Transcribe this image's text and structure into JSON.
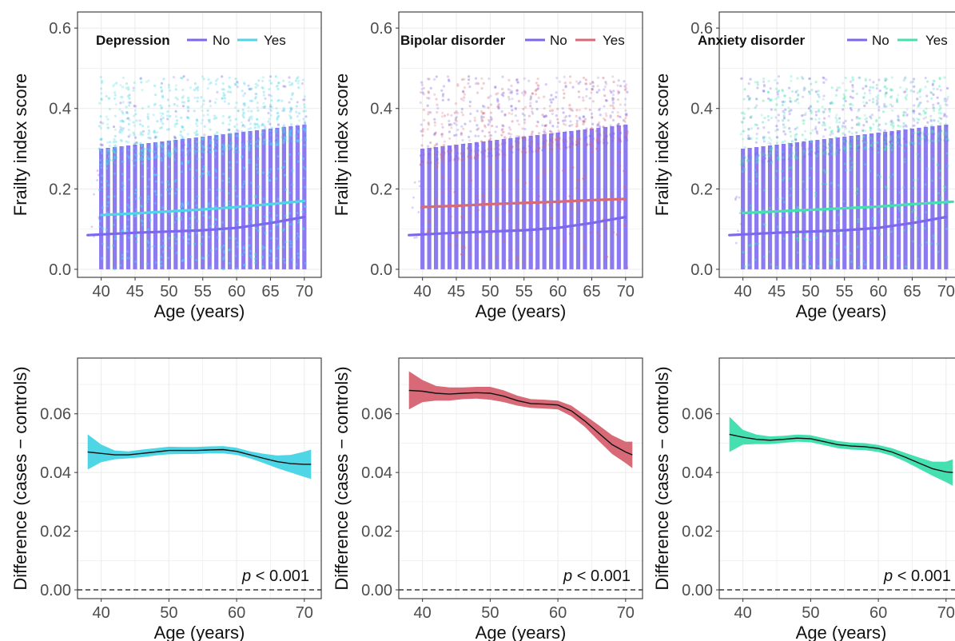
{
  "colors": {
    "no": "#7b68ee",
    "depression": "#4fd6e6",
    "bipolar": "#d86a78",
    "anxiety": "#45e0b0",
    "panel_border": "#333333",
    "grid": "#ebebeb",
    "text": "#333333"
  },
  "chart_data": [
    {
      "type": "scatter",
      "panel": "top-left",
      "legend_title": "Depression",
      "legend_placement": "top",
      "ylabel": "Frailty index score",
      "xlabel": "Age (years)",
      "xlim": [
        36.5,
        72.5
      ],
      "ylim": [
        -0.02,
        0.64
      ],
      "xticks": [
        "40",
        "45",
        "50",
        "55",
        "60",
        "65",
        "70"
      ],
      "yticks": [
        "0.0",
        "0.2",
        "0.4",
        "0.6"
      ],
      "grid": true,
      "points_color_group": "Yes",
      "points_case_fraction": 0.4,
      "series": [
        {
          "name": "No",
          "x": [
            38,
            45,
            50,
            55,
            60,
            65,
            70
          ],
          "y": [
            0.085,
            0.091,
            0.094,
            0.097,
            0.103,
            0.115,
            0.13
          ]
        },
        {
          "name": "Yes",
          "x": [
            40,
            45,
            50,
            55,
            60,
            65,
            70
          ],
          "y": [
            0.135,
            0.139,
            0.144,
            0.149,
            0.155,
            0.162,
            0.17
          ]
        }
      ]
    },
    {
      "type": "scatter",
      "panel": "top-middle",
      "legend_title": "Bipolar disorder",
      "legend_placement": "top",
      "ylabel": "Frailty index score",
      "xlabel": "Age (years)",
      "xlim": [
        36.5,
        72.5
      ],
      "ylim": [
        -0.02,
        0.64
      ],
      "xticks": [
        "40",
        "45",
        "50",
        "55",
        "60",
        "65",
        "70"
      ],
      "yticks": [
        "0.0",
        "0.2",
        "0.4",
        "0.6"
      ],
      "grid": true,
      "points_color_group": "Yes",
      "points_case_fraction": 0.07,
      "series": [
        {
          "name": "No",
          "x": [
            38,
            45,
            50,
            55,
            60,
            65,
            70
          ],
          "y": [
            0.085,
            0.091,
            0.094,
            0.097,
            0.103,
            0.115,
            0.13
          ]
        },
        {
          "name": "Yes",
          "x": [
            40,
            45,
            50,
            55,
            60,
            65,
            70
          ],
          "y": [
            0.155,
            0.158,
            0.162,
            0.165,
            0.168,
            0.172,
            0.175
          ]
        }
      ]
    },
    {
      "type": "scatter",
      "panel": "top-right",
      "legend_title": "Anxiety disorder",
      "legend_placement": "top",
      "ylabel": "Frailty index score",
      "xlabel": "Age (years)",
      "xlim": [
        36.5,
        72.5
      ],
      "ylim": [
        -0.02,
        0.64
      ],
      "xticks": [
        "40",
        "45",
        "50",
        "55",
        "60",
        "65",
        "70"
      ],
      "yticks": [
        "0.0",
        "0.2",
        "0.4",
        "0.6"
      ],
      "grid": true,
      "points_color_group": "Yes",
      "points_case_fraction": 0.15,
      "series": [
        {
          "name": "No",
          "x": [
            38,
            45,
            50,
            55,
            60,
            65,
            70
          ],
          "y": [
            0.085,
            0.091,
            0.094,
            0.097,
            0.103,
            0.115,
            0.13
          ]
        },
        {
          "name": "Yes",
          "x": [
            40,
            45,
            50,
            55,
            60,
            65,
            71
          ],
          "y": [
            0.14,
            0.144,
            0.148,
            0.152,
            0.156,
            0.162,
            0.168
          ]
        }
      ]
    },
    {
      "type": "line",
      "panel": "bottom-left",
      "ylabel": "Difference (cases − controls)",
      "xlabel": "Age (years)",
      "xlim": [
        36.5,
        72.5
      ],
      "ylim": [
        -0.003,
        0.079
      ],
      "xticks": [
        "40",
        "50",
        "60",
        "70"
      ],
      "yticks": [
        "0.00",
        "0.02",
        "0.04",
        "0.06"
      ],
      "grid": true,
      "reference_line": 0,
      "annotation": {
        "italic": "p",
        "text": " < 0.001"
      },
      "band_color": "depression",
      "x": [
        38,
        40,
        42,
        44,
        46,
        48,
        50,
        52,
        54,
        56,
        58,
        60,
        62,
        64,
        66,
        68,
        70,
        71
      ],
      "y": [
        0.047,
        0.0465,
        0.046,
        0.046,
        0.0465,
        0.047,
        0.0475,
        0.0475,
        0.0475,
        0.0477,
        0.0478,
        0.0472,
        0.046,
        0.0448,
        0.0437,
        0.043,
        0.0428,
        0.0428
      ],
      "lower": [
        0.041,
        0.0435,
        0.0445,
        0.0448,
        0.0452,
        0.0458,
        0.0462,
        0.0463,
        0.0463,
        0.0465,
        0.0465,
        0.046,
        0.0448,
        0.0432,
        0.0415,
        0.04,
        0.0385,
        0.0378
      ],
      "upper": [
        0.053,
        0.0495,
        0.0475,
        0.0472,
        0.0478,
        0.0483,
        0.0488,
        0.0487,
        0.0487,
        0.0489,
        0.049,
        0.0484,
        0.0472,
        0.0464,
        0.0458,
        0.046,
        0.0471,
        0.0478
      ]
    },
    {
      "type": "line",
      "panel": "bottom-middle",
      "ylabel": "Difference (cases − controls)",
      "xlabel": "Age (years)",
      "xlim": [
        36.5,
        72.5
      ],
      "ylim": [
        -0.003,
        0.079
      ],
      "xticks": [
        "40",
        "50",
        "60",
        "70"
      ],
      "yticks": [
        "0.00",
        "0.02",
        "0.04",
        "0.06"
      ],
      "grid": true,
      "reference_line": 0,
      "annotation": {
        "italic": "p",
        "text": " < 0.001"
      },
      "band_color": "bipolar",
      "x": [
        38,
        40,
        42,
        44,
        46,
        48,
        50,
        52,
        54,
        56,
        58,
        60,
        62,
        64,
        66,
        68,
        70,
        71
      ],
      "y": [
        0.068,
        0.0677,
        0.067,
        0.0667,
        0.067,
        0.0672,
        0.067,
        0.066,
        0.0645,
        0.0635,
        0.0633,
        0.063,
        0.061,
        0.0575,
        0.0535,
        0.0495,
        0.047,
        0.046
      ],
      "lower": [
        0.0615,
        0.064,
        0.0645,
        0.0645,
        0.065,
        0.0652,
        0.0648,
        0.064,
        0.0628,
        0.062,
        0.0618,
        0.0615,
        0.0592,
        0.0555,
        0.0508,
        0.0463,
        0.0432,
        0.0415
      ],
      "upper": [
        0.0745,
        0.0715,
        0.0695,
        0.069,
        0.069,
        0.0692,
        0.0692,
        0.068,
        0.0662,
        0.065,
        0.0648,
        0.0645,
        0.0628,
        0.0595,
        0.0562,
        0.0527,
        0.0505,
        0.0505
      ]
    },
    {
      "type": "line",
      "panel": "bottom-right",
      "ylabel": "Difference (cases − controls)",
      "xlabel": "Age (years)",
      "xlim": [
        36.5,
        72.5
      ],
      "ylim": [
        -0.003,
        0.079
      ],
      "xticks": [
        "40",
        "50",
        "60",
        "70"
      ],
      "yticks": [
        "0.00",
        "0.02",
        "0.04",
        "0.06"
      ],
      "grid": true,
      "reference_line": 0,
      "annotation": {
        "italic": "p",
        "text": " < 0.001"
      },
      "band_color": "anxiety",
      "x": [
        38,
        40,
        42,
        44,
        46,
        48,
        50,
        52,
        54,
        56,
        58,
        60,
        62,
        64,
        66,
        68,
        70,
        71
      ],
      "y": [
        0.053,
        0.052,
        0.0513,
        0.051,
        0.0513,
        0.0517,
        0.0515,
        0.0505,
        0.0495,
        0.049,
        0.0488,
        0.0482,
        0.047,
        0.0452,
        0.0432,
        0.0413,
        0.0402,
        0.04
      ],
      "lower": [
        0.047,
        0.0495,
        0.0497,
        0.0497,
        0.0501,
        0.0505,
        0.0503,
        0.0493,
        0.0483,
        0.0478,
        0.0476,
        0.047,
        0.0457,
        0.0437,
        0.0413,
        0.0389,
        0.0367,
        0.0355
      ],
      "upper": [
        0.059,
        0.0545,
        0.0529,
        0.0523,
        0.0525,
        0.0529,
        0.0527,
        0.0517,
        0.0507,
        0.0502,
        0.05,
        0.0494,
        0.0483,
        0.0467,
        0.0451,
        0.0437,
        0.0437,
        0.0445
      ]
    }
  ]
}
